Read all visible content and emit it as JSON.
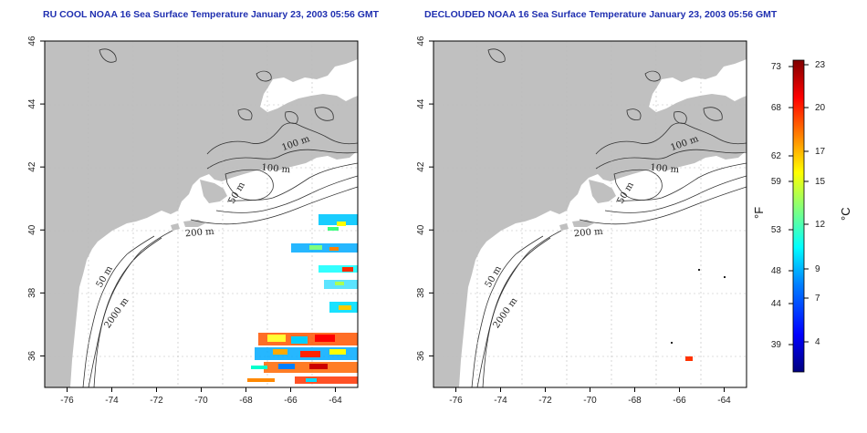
{
  "panels": [
    {
      "id": "left",
      "title": "RU COOL NOAA 16 Sea Surface Temperature January 23, 2003 05:56 GMT",
      "contour_labels": [
        "100 m",
        "100 m",
        "50 m",
        "200 m",
        "50 m",
        "2000 m"
      ]
    },
    {
      "id": "right",
      "title": "DECLOUDED NOAA 16 Sea Surface Temperature January 23, 2003 05:56 GMT",
      "contour_labels": [
        "100 m",
        "100 m",
        "50 m",
        "200 m",
        "50 m",
        "2000 m"
      ]
    }
  ],
  "axes": {
    "x_ticks": [
      "-76",
      "-74",
      "-72",
      "-70",
      "-68",
      "-66",
      "-64"
    ],
    "y_ticks": [
      "46",
      "44",
      "42",
      "40",
      "38",
      "36"
    ],
    "lon_range": [
      -77,
      -63
    ],
    "lat_range": [
      35,
      46
    ],
    "grid": "dotted"
  },
  "colorbar": {
    "fahrenheit_label": "°F",
    "celsius_label": "°C",
    "fahrenheit_ticks": [
      "73",
      "68",
      "62",
      "59",
      "53",
      "48",
      "44",
      "39"
    ],
    "celsius_ticks": [
      "23",
      "20",
      "17",
      "15",
      "12",
      "9",
      "7",
      "4"
    ],
    "colors": [
      "#00007f",
      "#0000ff",
      "#007fff",
      "#00ffff",
      "#7fff7f",
      "#ffff00",
      "#ff7f00",
      "#ff0000",
      "#7f0000"
    ]
  },
  "colors": {
    "land": "#c0c0c0",
    "title": "#1f2fb0",
    "contour": "#333333"
  }
}
